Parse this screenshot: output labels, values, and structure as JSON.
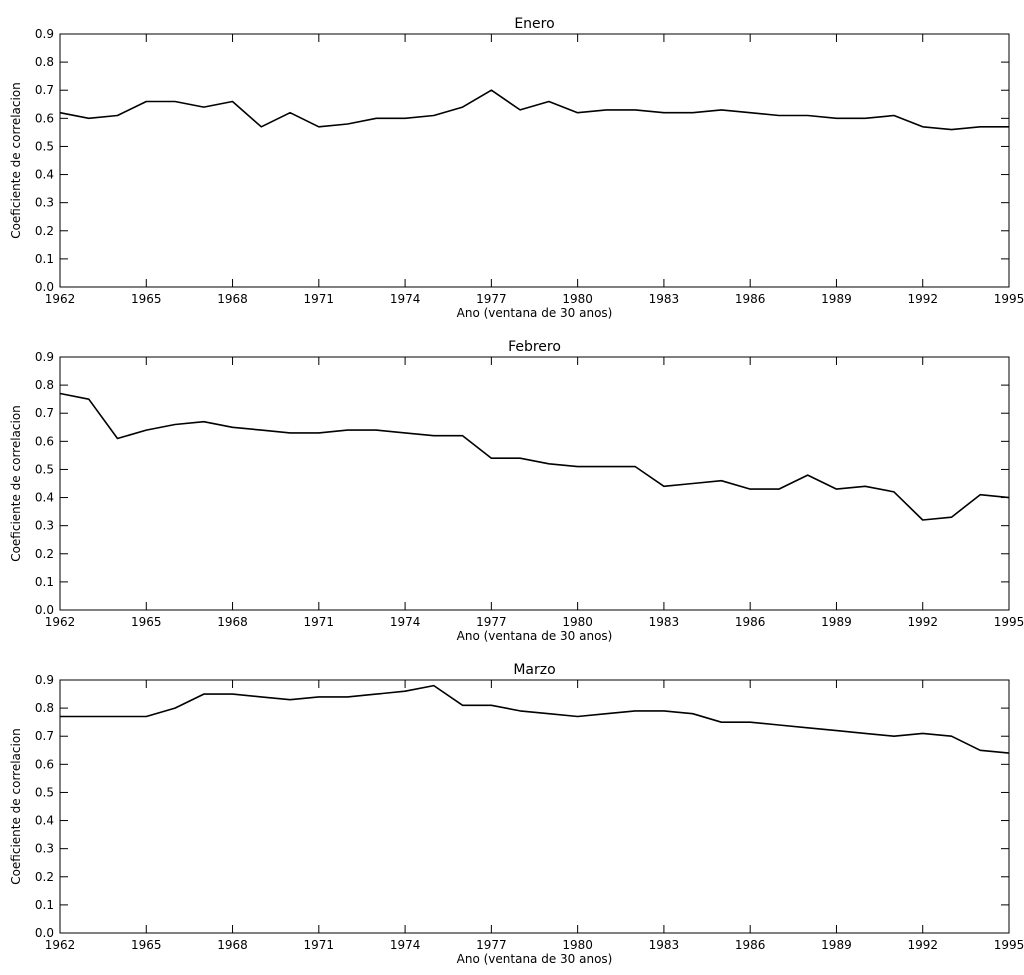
{
  "chart_data": [
    {
      "type": "line",
      "title": "Enero",
      "xlabel": "Ano (ventana de 30 anos)",
      "ylabel": "Coeficiente de correlacion",
      "xlim": [
        1962,
        1995
      ],
      "ylim": [
        0.0,
        0.9
      ],
      "xticks": [
        "1962",
        "1965",
        "1968",
        "1971",
        "1974",
        "1977",
        "1980",
        "1983",
        "1986",
        "1989",
        "1992",
        "1995"
      ],
      "yticks": [
        "0.0",
        "0.1",
        "0.2",
        "0.3",
        "0.4",
        "0.5",
        "0.6",
        "0.7",
        "0.8",
        "0.9"
      ],
      "grid": false,
      "x": [
        1962,
        1963,
        1964,
        1965,
        1966,
        1967,
        1968,
        1969,
        1970,
        1971,
        1972,
        1973,
        1974,
        1975,
        1976,
        1977,
        1978,
        1979,
        1980,
        1981,
        1982,
        1983,
        1984,
        1985,
        1986,
        1987,
        1988,
        1989,
        1990,
        1991,
        1992,
        1993,
        1994,
        1995
      ],
      "values": [
        0.62,
        0.6,
        0.61,
        0.66,
        0.66,
        0.64,
        0.66,
        0.57,
        0.62,
        0.57,
        0.58,
        0.6,
        0.6,
        0.61,
        0.64,
        0.7,
        0.63,
        0.66,
        0.62,
        0.63,
        0.63,
        0.62,
        0.62,
        0.63,
        0.62,
        0.61,
        0.61,
        0.6,
        0.6,
        0.61,
        0.57,
        0.56,
        0.57,
        0.57
      ]
    },
    {
      "type": "line",
      "title": "Febrero",
      "xlabel": "Ano (ventana de 30 anos)",
      "ylabel": "Coeficiente de correlacion",
      "xlim": [
        1962,
        1995
      ],
      "ylim": [
        0.0,
        0.9
      ],
      "xticks": [
        "1962",
        "1965",
        "1968",
        "1971",
        "1974",
        "1977",
        "1980",
        "1983",
        "1986",
        "1989",
        "1992",
        "1995"
      ],
      "yticks": [
        "0.0",
        "0.1",
        "0.2",
        "0.3",
        "0.4",
        "0.5",
        "0.6",
        "0.7",
        "0.8",
        "0.9"
      ],
      "grid": false,
      "x": [
        1962,
        1963,
        1964,
        1965,
        1966,
        1967,
        1968,
        1969,
        1970,
        1971,
        1972,
        1973,
        1974,
        1975,
        1976,
        1977,
        1978,
        1979,
        1980,
        1981,
        1982,
        1983,
        1984,
        1985,
        1986,
        1987,
        1988,
        1989,
        1990,
        1991,
        1992,
        1993,
        1994,
        1995
      ],
      "values": [
        0.77,
        0.75,
        0.61,
        0.64,
        0.66,
        0.67,
        0.65,
        0.64,
        0.63,
        0.63,
        0.64,
        0.64,
        0.63,
        0.62,
        0.62,
        0.54,
        0.54,
        0.52,
        0.51,
        0.51,
        0.51,
        0.44,
        0.45,
        0.46,
        0.43,
        0.43,
        0.48,
        0.43,
        0.44,
        0.42,
        0.32,
        0.33,
        0.41,
        0.4
      ]
    },
    {
      "type": "line",
      "title": "Marzo",
      "xlabel": "Ano (ventana de 30 anos)",
      "ylabel": "Coeficiente de correlacion",
      "xlim": [
        1962,
        1995
      ],
      "ylim": [
        0.0,
        0.9
      ],
      "xticks": [
        "1962",
        "1965",
        "1968",
        "1971",
        "1974",
        "1977",
        "1980",
        "1983",
        "1986",
        "1989",
        "1992",
        "1995"
      ],
      "yticks": [
        "0.0",
        "0.1",
        "0.2",
        "0.3",
        "0.4",
        "0.5",
        "0.6",
        "0.7",
        "0.8",
        "0.9"
      ],
      "grid": false,
      "x": [
        1962,
        1963,
        1964,
        1965,
        1966,
        1967,
        1968,
        1969,
        1970,
        1971,
        1972,
        1973,
        1974,
        1975,
        1976,
        1977,
        1978,
        1979,
        1980,
        1981,
        1982,
        1983,
        1984,
        1985,
        1986,
        1987,
        1988,
        1989,
        1990,
        1991,
        1992,
        1993,
        1994,
        1995
      ],
      "values": [
        0.77,
        0.77,
        0.77,
        0.77,
        0.8,
        0.85,
        0.85,
        0.84,
        0.83,
        0.84,
        0.84,
        0.85,
        0.86,
        0.88,
        0.81,
        0.81,
        0.79,
        0.78,
        0.77,
        0.78,
        0.79,
        0.79,
        0.78,
        0.75,
        0.75,
        0.74,
        0.73,
        0.72,
        0.71,
        0.7,
        0.71,
        0.7,
        0.65,
        0.64
      ]
    }
  ]
}
